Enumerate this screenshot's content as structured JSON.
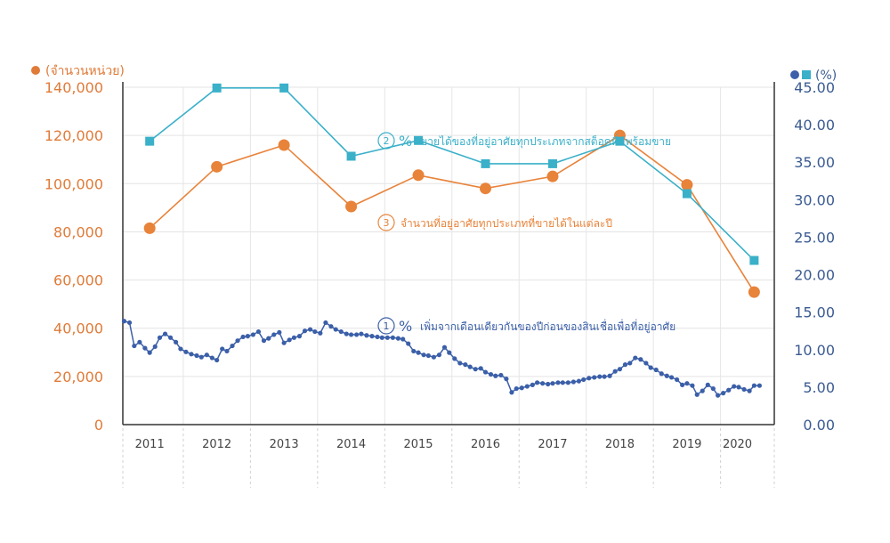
{
  "chart_data": {
    "type": "line",
    "y_left": {
      "unit_label": "(จำนวนหน่วย)",
      "range": [
        0,
        140000
      ],
      "ticks": [
        "0",
        "20,000",
        "40,000",
        "60,000",
        "80,000",
        "100,000",
        "120,000",
        "140,000"
      ],
      "color": "#e07b39"
    },
    "y_right": {
      "unit_label": "(%)",
      "range": [
        0,
        45
      ],
      "ticks": [
        "0.00",
        "5.00",
        "10.00",
        "15.00",
        "20.00",
        "25.00",
        "30.00",
        "35.00",
        "40.00",
        "45.00"
      ],
      "color": "#3b5b92"
    },
    "x_range": [
      2010.6,
      2020.3
    ],
    "x_ticks": [
      {
        "label": "2011",
        "x": 2011.0
      },
      {
        "label": "2012",
        "x": 2012.0
      },
      {
        "label": "2013",
        "x": 2013.0
      },
      {
        "label": "2014",
        "x": 2014.0
      },
      {
        "label": "2015",
        "x": 2015.0
      },
      {
        "label": "2016",
        "x": 2016.0
      },
      {
        "label": "2017",
        "x": 2017.0
      },
      {
        "label": "2018",
        "x": 2018.0
      },
      {
        "label": "2019",
        "x": 2019.0
      },
      {
        "label": "2020",
        "x": 2019.75
      }
    ],
    "grid": true,
    "series": [
      {
        "id": "units-sold",
        "axis": "left",
        "color": "#e8833a",
        "marker": "circle",
        "annotation_number": "3",
        "annotation_text": "จำนวนที่อยู่อาศัยทุกประเภทที่ขายได้ในแต่ละปี",
        "x": [
          2011.0,
          2012.0,
          2013.0,
          2014.0,
          2015.0,
          2016.0,
          2017.0,
          2018.0,
          2019.0,
          2020.0
        ],
        "values": [
          81500,
          107000,
          116000,
          90500,
          103500,
          98000,
          103000,
          120000,
          99500,
          55000
        ]
      },
      {
        "id": "pct-sold-of-stock",
        "axis": "right",
        "color": "#3ab0c9",
        "marker": "square",
        "annotation_number": "2",
        "annotation_pct": "%",
        "annotation_text": "ขายได้ของที่อยู่อาศัยทุกประเภทจากสต็อคที่มีพร้อมขาย",
        "x": [
          2011.0,
          2012.0,
          2013.0,
          2014.0,
          2015.0,
          2016.0,
          2017.0,
          2018.0,
          2019.0,
          2020.0
        ],
        "values": [
          37.8,
          44.9,
          44.9,
          35.8,
          37.9,
          34.8,
          34.8,
          37.8,
          30.8,
          21.9
        ]
      },
      {
        "id": "loan-yoy-growth",
        "axis": "right",
        "color": "#3b5fa8",
        "marker": "small-circle",
        "annotation_number": "1",
        "annotation_pct": "%",
        "annotation_text": "เพิ่มจากเดือนเดียวกันของปีก่อนของสินเชื่อเพื่อที่อยู่อาศัย",
        "x": [
          2010.62,
          2010.7,
          2010.77,
          2010.85,
          2010.93,
          2011.0,
          2011.08,
          2011.15,
          2011.23,
          2011.31,
          2011.39,
          2011.46,
          2011.54,
          2011.62,
          2011.7,
          2011.77,
          2011.85,
          2011.93,
          2012.0,
          2012.08,
          2012.15,
          2012.23,
          2012.31,
          2012.39,
          2012.46,
          2012.54,
          2012.62,
          2012.7,
          2012.77,
          2012.85,
          2012.93,
          2013.0,
          2013.08,
          2013.15,
          2013.23,
          2013.31,
          2013.39,
          2013.46,
          2013.54,
          2013.62,
          2013.7,
          2013.77,
          2013.85,
          2013.93,
          2014.0,
          2014.08,
          2014.15,
          2014.23,
          2014.31,
          2014.39,
          2014.46,
          2014.54,
          2014.62,
          2014.7,
          2014.77,
          2014.85,
          2014.93,
          2015.0,
          2015.08,
          2015.15,
          2015.23,
          2015.31,
          2015.39,
          2015.46,
          2015.54,
          2015.62,
          2015.7,
          2015.77,
          2015.85,
          2015.93,
          2016.0,
          2016.08,
          2016.15,
          2016.23,
          2016.31,
          2016.39,
          2016.46,
          2016.54,
          2016.62,
          2016.7,
          2016.77,
          2016.85,
          2016.93,
          2017.0,
          2017.08,
          2017.15,
          2017.23,
          2017.31,
          2017.39,
          2017.46,
          2017.54,
          2017.62,
          2017.7,
          2017.77,
          2017.85,
          2017.93,
          2018.0,
          2018.08,
          2018.15,
          2018.23,
          2018.31,
          2018.39,
          2018.46,
          2018.54,
          2018.62,
          2018.7,
          2018.77,
          2018.85,
          2018.93,
          2019.0,
          2019.08,
          2019.15,
          2019.23,
          2019.31,
          2019.39,
          2019.46,
          2019.54,
          2019.62,
          2019.7,
          2019.77,
          2019.85,
          2019.93,
          2020.0,
          2020.08
        ],
        "values": [
          13.8,
          13.6,
          10.5,
          11.0,
          10.2,
          9.6,
          10.4,
          11.6,
          12.1,
          11.6,
          11.0,
          10.1,
          9.7,
          9.4,
          9.2,
          9.0,
          9.3,
          8.9,
          8.6,
          10.1,
          9.8,
          10.5,
          11.2,
          11.7,
          11.8,
          12.0,
          12.4,
          11.2,
          11.5,
          12.0,
          12.3,
          10.9,
          11.3,
          11.6,
          11.8,
          12.5,
          12.7,
          12.4,
          12.2,
          13.6,
          13.1,
          12.7,
          12.4,
          12.1,
          12.0,
          12.0,
          12.1,
          11.9,
          11.8,
          11.7,
          11.6,
          11.6,
          11.6,
          11.5,
          11.4,
          10.8,
          9.8,
          9.6,
          9.3,
          9.2,
          9.0,
          9.3,
          10.3,
          9.6,
          8.8,
          8.2,
          8.0,
          7.7,
          7.4,
          7.5,
          7.0,
          6.7,
          6.5,
          6.6,
          6.1,
          4.3,
          4.8,
          4.9,
          5.1,
          5.3,
          5.6,
          5.5,
          5.4,
          5.5,
          5.6,
          5.6,
          5.6,
          5.7,
          5.8,
          6.0,
          6.2,
          6.3,
          6.4,
          6.4,
          6.5,
          7.1,
          7.4,
          8.0,
          8.2,
          8.9,
          8.7,
          8.2,
          7.6,
          7.3,
          6.8,
          6.5,
          6.3,
          6.0,
          5.3,
          5.5,
          5.2,
          4.0,
          4.5,
          5.3,
          4.8,
          3.9,
          4.2,
          4.6,
          5.1,
          5.0,
          4.7,
          4.5,
          5.2,
          5.2
        ]
      }
    ]
  }
}
